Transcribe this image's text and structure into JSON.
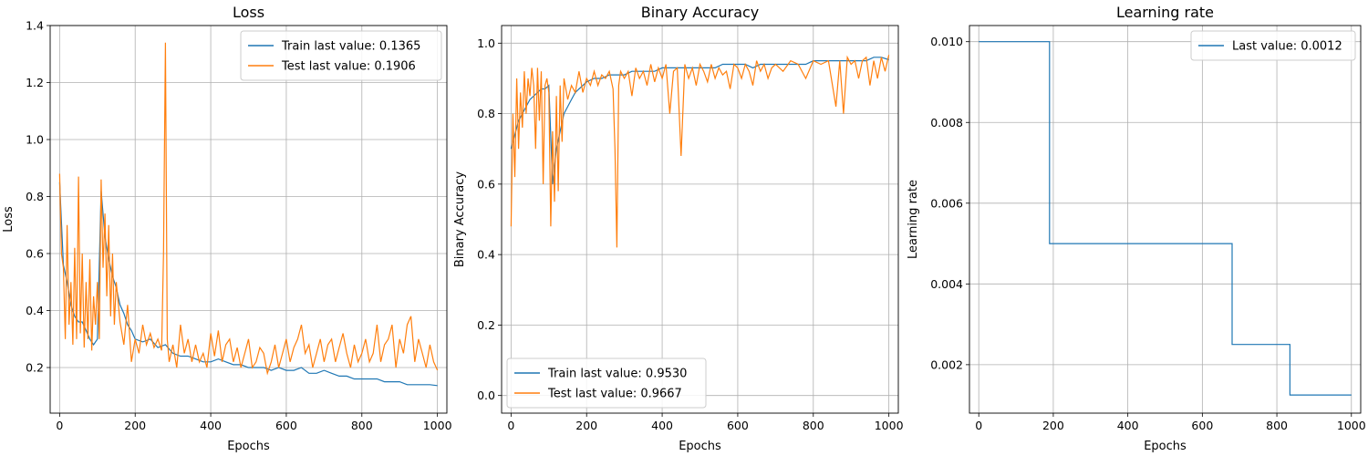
{
  "colors": {
    "train": "#1f77b4",
    "test": "#ff7f0e",
    "grid": "#b0b0b0",
    "axes": "#000000"
  },
  "chart_data": [
    {
      "type": "line",
      "title": "Loss",
      "xlabel": "Epochs",
      "ylabel": "Loss",
      "xlim": [
        -25,
        1025
      ],
      "ylim": [
        0.04,
        1.4
      ],
      "xticks": [
        0,
        200,
        400,
        600,
        800,
        1000
      ],
      "yticks": [
        0.2,
        0.4,
        0.6,
        0.8,
        1.0,
        1.2,
        1.4
      ],
      "ytick_labels": [
        "0.2",
        "0.4",
        "0.6",
        "0.8",
        "1.0",
        "1.2",
        "1.4"
      ],
      "grid": true,
      "legend_position": "top-right",
      "series": [
        {
          "name": "Train last value: 0.1365",
          "color": "#1f77b4",
          "x": [
            0,
            10,
            20,
            30,
            40,
            50,
            60,
            70,
            80,
            90,
            100,
            110,
            120,
            130,
            140,
            150,
            160,
            170,
            180,
            190,
            200,
            220,
            240,
            260,
            280,
            300,
            320,
            340,
            360,
            380,
            400,
            420,
            440,
            460,
            480,
            500,
            520,
            540,
            560,
            580,
            600,
            620,
            640,
            660,
            680,
            700,
            720,
            740,
            760,
            780,
            800,
            820,
            840,
            860,
            880,
            900,
            920,
            940,
            960,
            980,
            1000
          ],
          "y": [
            0.85,
            0.56,
            0.5,
            0.42,
            0.38,
            0.36,
            0.36,
            0.33,
            0.3,
            0.28,
            0.3,
            0.82,
            0.66,
            0.58,
            0.52,
            0.48,
            0.42,
            0.39,
            0.35,
            0.33,
            0.3,
            0.29,
            0.3,
            0.27,
            0.28,
            0.25,
            0.24,
            0.24,
            0.23,
            0.22,
            0.22,
            0.23,
            0.22,
            0.21,
            0.21,
            0.2,
            0.2,
            0.2,
            0.19,
            0.2,
            0.19,
            0.19,
            0.2,
            0.18,
            0.18,
            0.19,
            0.18,
            0.17,
            0.17,
            0.16,
            0.16,
            0.16,
            0.16,
            0.15,
            0.15,
            0.15,
            0.14,
            0.14,
            0.14,
            0.14,
            0.1365
          ]
        },
        {
          "name": "Test last value: 0.1906",
          "color": "#ff7f0e",
          "x": [
            0,
            5,
            10,
            15,
            20,
            25,
            30,
            35,
            40,
            45,
            50,
            55,
            60,
            65,
            70,
            75,
            80,
            85,
            90,
            95,
            100,
            105,
            110,
            115,
            120,
            125,
            130,
            135,
            140,
            145,
            150,
            160,
            170,
            180,
            190,
            200,
            210,
            220,
            230,
            240,
            250,
            260,
            270,
            275,
            280,
            285,
            290,
            300,
            310,
            320,
            330,
            340,
            350,
            360,
            370,
            380,
            390,
            400,
            410,
            420,
            430,
            440,
            450,
            460,
            470,
            480,
            490,
            500,
            510,
            520,
            530,
            540,
            550,
            560,
            570,
            580,
            590,
            600,
            610,
            620,
            630,
            640,
            650,
            660,
            670,
            680,
            690,
            700,
            710,
            720,
            730,
            740,
            750,
            760,
            770,
            780,
            790,
            800,
            810,
            820,
            830,
            840,
            850,
            860,
            870,
            880,
            890,
            900,
            910,
            920,
            930,
            940,
            950,
            960,
            970,
            980,
            990,
            1000
          ],
          "y": [
            0.88,
            0.6,
            0.55,
            0.3,
            0.7,
            0.35,
            0.5,
            0.28,
            0.62,
            0.3,
            0.87,
            0.32,
            0.6,
            0.27,
            0.5,
            0.3,
            0.58,
            0.26,
            0.45,
            0.35,
            0.5,
            0.3,
            0.86,
            0.55,
            0.74,
            0.45,
            0.7,
            0.38,
            0.6,
            0.35,
            0.5,
            0.36,
            0.28,
            0.42,
            0.22,
            0.3,
            0.25,
            0.35,
            0.28,
            0.32,
            0.27,
            0.3,
            0.26,
            0.6,
            1.34,
            0.3,
            0.22,
            0.28,
            0.2,
            0.35,
            0.25,
            0.3,
            0.22,
            0.28,
            0.22,
            0.25,
            0.2,
            0.32,
            0.24,
            0.33,
            0.22,
            0.28,
            0.3,
            0.22,
            0.27,
            0.2,
            0.25,
            0.3,
            0.2,
            0.22,
            0.27,
            0.25,
            0.18,
            0.22,
            0.28,
            0.2,
            0.25,
            0.3,
            0.22,
            0.27,
            0.3,
            0.35,
            0.25,
            0.28,
            0.2,
            0.25,
            0.3,
            0.22,
            0.28,
            0.3,
            0.22,
            0.27,
            0.32,
            0.25,
            0.2,
            0.28,
            0.22,
            0.25,
            0.3,
            0.22,
            0.25,
            0.35,
            0.22,
            0.28,
            0.3,
            0.35,
            0.2,
            0.3,
            0.25,
            0.35,
            0.38,
            0.22,
            0.3,
            0.25,
            0.2,
            0.28,
            0.22,
            0.1906
          ]
        }
      ]
    },
    {
      "type": "line",
      "title": "Binary Accuracy",
      "xlabel": "Epochs",
      "ylabel": "Binary Accuracy",
      "xlim": [
        -25,
        1025
      ],
      "ylim": [
        -0.05,
        1.05
      ],
      "xticks": [
        0,
        200,
        400,
        600,
        800,
        1000
      ],
      "yticks": [
        0.0,
        0.2,
        0.4,
        0.6,
        0.8,
        1.0
      ],
      "ytick_labels": [
        "0.0",
        "0.2",
        "0.4",
        "0.6",
        "0.8",
        "1.0"
      ],
      "grid": true,
      "legend_position": "bottom-left",
      "series": [
        {
          "name": "Train last value: 0.9530",
          "color": "#1f77b4",
          "x": [
            0,
            10,
            20,
            30,
            40,
            50,
            60,
            70,
            80,
            90,
            100,
            110,
            120,
            130,
            140,
            150,
            160,
            170,
            180,
            190,
            200,
            220,
            240,
            260,
            280,
            300,
            320,
            340,
            360,
            380,
            400,
            420,
            440,
            460,
            480,
            500,
            520,
            540,
            560,
            580,
            600,
            620,
            640,
            660,
            680,
            700,
            720,
            740,
            760,
            780,
            800,
            820,
            840,
            860,
            880,
            900,
            920,
            940,
            960,
            980,
            1000
          ],
          "y": [
            0.7,
            0.74,
            0.78,
            0.8,
            0.82,
            0.84,
            0.85,
            0.86,
            0.87,
            0.87,
            0.88,
            0.6,
            0.7,
            0.75,
            0.8,
            0.82,
            0.84,
            0.86,
            0.87,
            0.88,
            0.89,
            0.9,
            0.9,
            0.91,
            0.91,
            0.91,
            0.92,
            0.92,
            0.92,
            0.92,
            0.93,
            0.93,
            0.93,
            0.93,
            0.93,
            0.93,
            0.93,
            0.93,
            0.94,
            0.94,
            0.94,
            0.94,
            0.93,
            0.94,
            0.94,
            0.94,
            0.94,
            0.94,
            0.94,
            0.94,
            0.95,
            0.95,
            0.95,
            0.95,
            0.95,
            0.95,
            0.95,
            0.95,
            0.96,
            0.96,
            0.953
          ]
        },
        {
          "name": "Test last value: 0.9667",
          "color": "#ff7f0e",
          "x": [
            0,
            5,
            10,
            15,
            20,
            25,
            30,
            35,
            40,
            45,
            50,
            55,
            60,
            65,
            70,
            75,
            80,
            85,
            90,
            95,
            100,
            105,
            110,
            115,
            120,
            125,
            130,
            135,
            140,
            150,
            160,
            170,
            180,
            190,
            200,
            210,
            220,
            230,
            240,
            250,
            260,
            270,
            275,
            280,
            285,
            290,
            300,
            310,
            320,
            330,
            340,
            350,
            360,
            370,
            380,
            390,
            400,
            410,
            420,
            430,
            440,
            450,
            460,
            470,
            480,
            490,
            500,
            510,
            520,
            530,
            540,
            550,
            560,
            570,
            580,
            590,
            600,
            610,
            620,
            630,
            640,
            650,
            660,
            670,
            680,
            690,
            700,
            720,
            740,
            760,
            780,
            800,
            820,
            840,
            860,
            870,
            880,
            890,
            900,
            910,
            920,
            930,
            940,
            950,
            960,
            970,
            980,
            990,
            1000
          ],
          "y": [
            0.48,
            0.8,
            0.62,
            0.9,
            0.7,
            0.86,
            0.76,
            0.92,
            0.8,
            0.9,
            0.85,
            0.93,
            0.88,
            0.7,
            0.93,
            0.78,
            0.92,
            0.6,
            0.88,
            0.9,
            0.86,
            0.48,
            0.75,
            0.55,
            0.85,
            0.58,
            0.88,
            0.72,
            0.9,
            0.84,
            0.88,
            0.86,
            0.92,
            0.86,
            0.9,
            0.88,
            0.92,
            0.88,
            0.91,
            0.9,
            0.92,
            0.87,
            0.7,
            0.42,
            0.88,
            0.92,
            0.9,
            0.92,
            0.85,
            0.93,
            0.9,
            0.92,
            0.88,
            0.94,
            0.89,
            0.93,
            0.9,
            0.94,
            0.8,
            0.92,
            0.93,
            0.68,
            0.94,
            0.9,
            0.93,
            0.88,
            0.94,
            0.92,
            0.89,
            0.94,
            0.9,
            0.93,
            0.91,
            0.92,
            0.87,
            0.94,
            0.93,
            0.9,
            0.94,
            0.92,
            0.88,
            0.95,
            0.92,
            0.94,
            0.9,
            0.93,
            0.94,
            0.92,
            0.95,
            0.94,
            0.9,
            0.95,
            0.94,
            0.95,
            0.82,
            0.95,
            0.8,
            0.96,
            0.94,
            0.95,
            0.9,
            0.95,
            0.96,
            0.88,
            0.95,
            0.9,
            0.96,
            0.92,
            0.9667
          ]
        }
      ]
    },
    {
      "type": "line",
      "title": "Learning rate",
      "xlabel": "Epochs",
      "ylabel": "Learning rate",
      "xlim": [
        -25,
        1025
      ],
      "ylim": [
        0.0008,
        0.0104
      ],
      "xticks": [
        0,
        200,
        400,
        600,
        800,
        1000
      ],
      "yticks": [
        0.002,
        0.004,
        0.006,
        0.008,
        0.01
      ],
      "ytick_labels": [
        "0.002",
        "0.004",
        "0.006",
        "0.008",
        "0.010"
      ],
      "grid": true,
      "legend_position": "top-right",
      "series": [
        {
          "name": "Last value: 0.0012",
          "color": "#1f77b4",
          "x": [
            0,
            190,
            190,
            680,
            680,
            835,
            835,
            1000
          ],
          "y": [
            0.01,
            0.01,
            0.005,
            0.005,
            0.0025,
            0.0025,
            0.00125,
            0.00125
          ]
        }
      ]
    }
  ]
}
